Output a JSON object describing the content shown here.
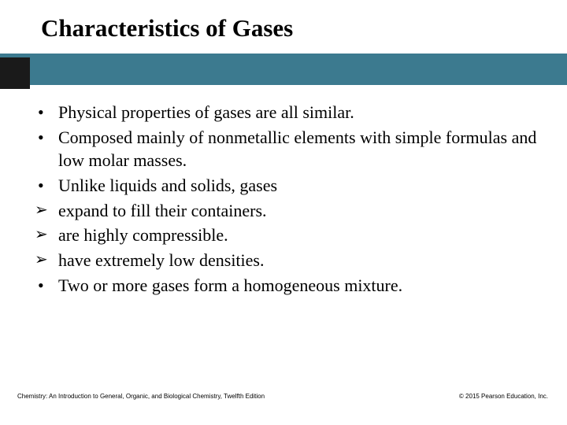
{
  "slide": {
    "title": "Characteristics of Gases",
    "title_fontsize": 31,
    "title_color": "#000000",
    "banner_color": "#3c7a8f",
    "banner_dark_color": "#1a1a1a",
    "background_color": "#ffffff",
    "body_fontsize": 22,
    "body_color": "#000000",
    "bullets": [
      {
        "marker": "•",
        "text": "Physical properties of gases are all similar."
      },
      {
        "marker": "•",
        "text": "Composed mainly of nonmetallic elements with simple formulas and low molar masses."
      },
      {
        "marker": "•",
        "text": "Unlike liquids and solids, gases"
      }
    ],
    "arrows": [
      {
        "marker": "➢",
        "text": "expand to fill their containers."
      },
      {
        "marker": "➢",
        "text": "are highly compressible."
      },
      {
        "marker": "➢",
        "text": "have extremely low densities."
      }
    ],
    "bullets2": [
      {
        "marker": "•",
        "text": "Two or more gases form a homogeneous mixture."
      }
    ],
    "footer_left": "Chemistry: An Introduction to General, Organic, and Biological Chemistry, Twelfth Edition",
    "footer_right": "© 2015 Pearson Education, Inc.",
    "footer_fontsize": 8
  }
}
